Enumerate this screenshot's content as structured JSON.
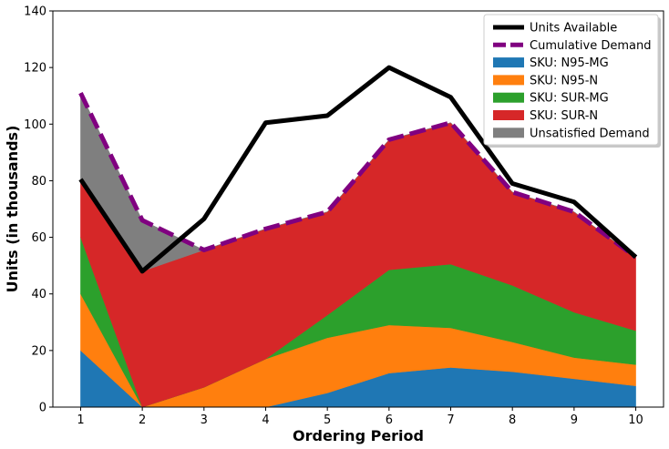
{
  "chart_data": {
    "type": "area",
    "title": "",
    "xlabel": "Ordering Period",
    "ylabel": "Units (in thousands)",
    "x": [
      1,
      2,
      3,
      4,
      5,
      6,
      7,
      8,
      9,
      10
    ],
    "xlim": [
      0.55,
      10.45
    ],
    "ylim": [
      0,
      140
    ],
    "yticks": [
      0,
      20,
      40,
      60,
      80,
      100,
      120,
      140
    ],
    "legend_position": "upper-right",
    "stacked_series": [
      {
        "name": "SKU: N95-MG",
        "color": "#1f77b4",
        "values": [
          20,
          0,
          0,
          0,
          5,
          12,
          14,
          12.5,
          10,
          7.5
        ]
      },
      {
        "name": "SKU: N95-N",
        "color": "#ff7f0e",
        "values": [
          20,
          0,
          7,
          17,
          19.5,
          17,
          14,
          10.5,
          7.5,
          7.5
        ]
      },
      {
        "name": "SKU: SUR-MG",
        "color": "#2ca02c",
        "values": [
          20,
          0,
          0,
          0,
          8,
          19.5,
          22.5,
          20,
          16,
          12
        ]
      },
      {
        "name": "SKU: SUR-N",
        "color": "#d62728",
        "values": [
          20,
          48,
          48.5,
          46,
          36.5,
          46,
          50,
          33,
          35.5,
          26
        ]
      },
      {
        "name": "Unsatisfied Demand",
        "color": "#7f7f7f",
        "values": [
          31,
          18,
          0,
          0,
          0,
          0,
          0,
          0,
          0,
          0
        ]
      }
    ],
    "line_series": [
      {
        "name": "Units Available",
        "color": "#000000",
        "style": "solid",
        "values": [
          80.5,
          48,
          66.5,
          100.5,
          103,
          120,
          109.5,
          79,
          72.5,
          53
        ]
      },
      {
        "name": "Cumulative Demand",
        "color": "#800080",
        "style": "dashed",
        "values": [
          111,
          66,
          55.5,
          63,
          69,
          94.5,
          100.5,
          76,
          69,
          53
        ]
      }
    ],
    "legend_order": [
      "Units Available",
      "Cumulative Demand",
      "SKU: N95-MG",
      "SKU: N95-N",
      "SKU: SUR-MG",
      "SKU: SUR-N",
      "Unsatisfied Demand"
    ]
  }
}
